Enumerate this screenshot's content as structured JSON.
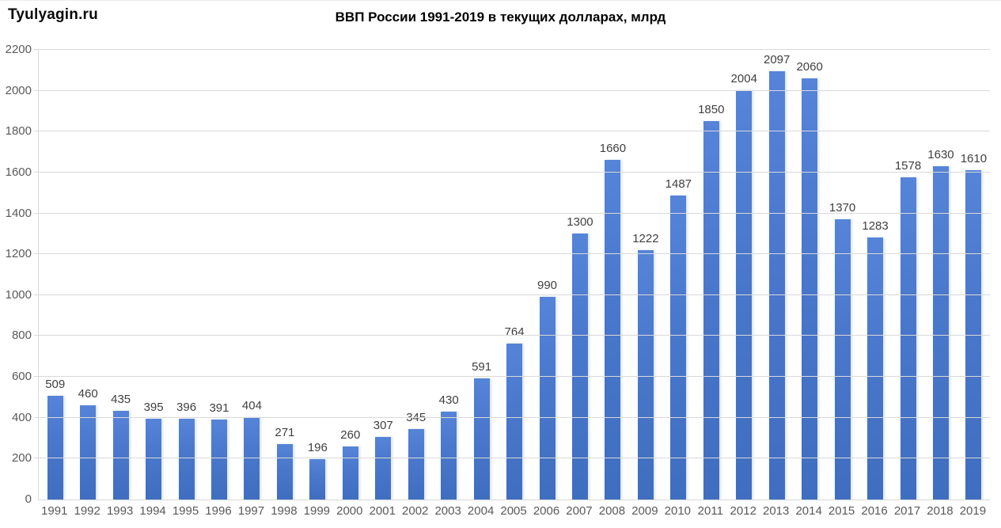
{
  "watermark": "Tyulyagin.ru",
  "chart_data": {
    "type": "bar",
    "title": "ВВП России 1991-2019 в текущих долларах, млрд",
    "xlabel": "",
    "ylabel": "",
    "categories": [
      "1991",
      "1992",
      "1993",
      "1994",
      "1995",
      "1996",
      "1997",
      "1998",
      "1999",
      "2000",
      "2001",
      "2002",
      "2003",
      "2004",
      "2005",
      "2006",
      "2007",
      "2008",
      "2009",
      "2010",
      "2011",
      "2012",
      "2013",
      "2014",
      "2015",
      "2016",
      "2017",
      "2018",
      "2019"
    ],
    "values": [
      509,
      460,
      435,
      395,
      396,
      391,
      404,
      271,
      196,
      260,
      307,
      345,
      430,
      591,
      764,
      990,
      1300,
      1660,
      1222,
      1487,
      1850,
      2004,
      2097,
      2060,
      1370,
      1283,
      1578,
      1630,
      1610
    ],
    "ylim": [
      0,
      2200
    ],
    "yticks": [
      0,
      200,
      400,
      600,
      800,
      1000,
      1200,
      1400,
      1600,
      1800,
      2000,
      2200
    ],
    "grid": true,
    "legend": "none",
    "value_labels": "above-bars",
    "colors": {
      "bar_top": "#5584d8",
      "bar_bottom": "#3f6ec0",
      "gridline": "#d9d9d9",
      "axis_text": "#595959",
      "value_label_text": "#404040",
      "title_text": "#000000"
    }
  }
}
